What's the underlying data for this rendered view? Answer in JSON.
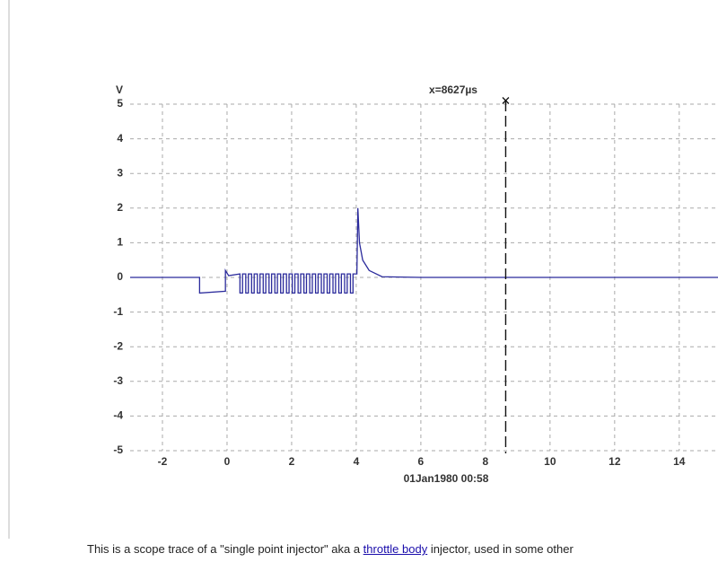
{
  "chart_data": {
    "type": "line",
    "ylabel": "V",
    "timestamp": "01Jan1980  00:58",
    "xlim": [
      -3,
      15.2
    ],
    "ylim": [
      -5,
      5
    ],
    "xticks": [
      -2,
      0,
      2,
      4,
      6,
      8,
      10,
      12,
      14
    ],
    "yticks": [
      -5,
      -4,
      -3,
      -2,
      -1,
      0,
      1,
      2,
      3,
      4,
      5
    ],
    "grid": true,
    "cursor": {
      "x": 8.627,
      "label": "x=8627µs"
    },
    "series": [
      {
        "color": "#2b2b9c",
        "x": [
          -3,
          -0.85,
          -0.85,
          -0.05,
          -0.05,
          0.05,
          0.4,
          0.4,
          0.4,
          0.48,
          0.48,
          0.58,
          0.58,
          0.66,
          0.66,
          0.76,
          0.76,
          0.84,
          0.84,
          0.94,
          0.94,
          1.02,
          1.02,
          1.12,
          1.12,
          1.2,
          1.2,
          1.3,
          1.3,
          1.38,
          1.38,
          1.48,
          1.48,
          1.56,
          1.56,
          1.66,
          1.66,
          1.74,
          1.74,
          1.84,
          1.84,
          1.92,
          1.92,
          2.02,
          2.02,
          2.1,
          2.1,
          2.2,
          2.2,
          2.28,
          2.28,
          2.38,
          2.38,
          2.46,
          2.46,
          2.56,
          2.56,
          2.64,
          2.64,
          2.74,
          2.74,
          2.82,
          2.82,
          2.92,
          2.92,
          3.0,
          3.0,
          3.1,
          3.1,
          3.18,
          3.18,
          3.28,
          3.28,
          3.36,
          3.36,
          3.46,
          3.46,
          3.54,
          3.54,
          3.64,
          3.64,
          3.72,
          3.72,
          3.82,
          3.82,
          3.9,
          3.9,
          4.02,
          4.05,
          4.1,
          4.2,
          4.4,
          4.8,
          6,
          15.2
        ],
        "values": [
          0,
          0,
          -0.45,
          -0.4,
          0.2,
          0.05,
          0.1,
          0.1,
          -0.45,
          -0.45,
          0.1,
          0.1,
          -0.45,
          -0.45,
          0.1,
          0.1,
          -0.45,
          -0.45,
          0.1,
          0.1,
          -0.45,
          -0.45,
          0.1,
          0.1,
          -0.45,
          -0.45,
          0.1,
          0.1,
          -0.45,
          -0.45,
          0.1,
          0.1,
          -0.45,
          -0.45,
          0.1,
          0.1,
          -0.45,
          -0.45,
          0.1,
          0.1,
          -0.45,
          -0.45,
          0.1,
          0.1,
          -0.45,
          -0.45,
          0.1,
          0.1,
          -0.45,
          -0.45,
          0.1,
          0.1,
          -0.45,
          -0.45,
          0.1,
          0.1,
          -0.45,
          -0.45,
          0.1,
          0.1,
          -0.45,
          -0.45,
          0.1,
          0.1,
          -0.45,
          -0.45,
          0.1,
          0.1,
          -0.45,
          -0.45,
          0.1,
          0.1,
          -0.45,
          -0.45,
          0.1,
          0.1,
          -0.45,
          -0.45,
          0.1,
          0.1,
          -0.45,
          -0.45,
          0.1,
          0.1,
          -0.45,
          -0.45,
          0.1,
          0.1,
          2.0,
          1.0,
          0.5,
          0.2,
          0.02,
          0,
          0
        ]
      }
    ]
  },
  "caption": {
    "before": "This is a scope trace of a \"single point injector\" aka a ",
    "link": "throttle body",
    "after": " injector, used in some other"
  }
}
